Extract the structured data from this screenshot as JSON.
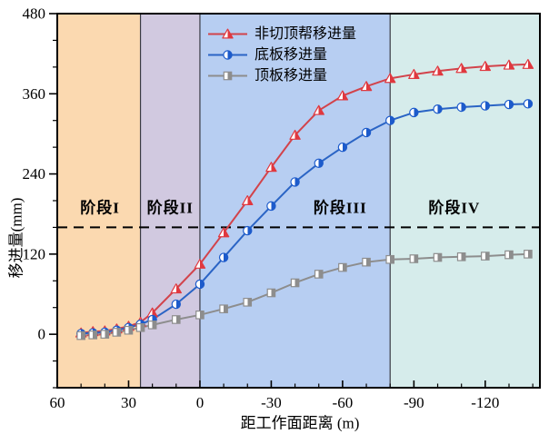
{
  "chart_data": {
    "type": "line",
    "title": "",
    "xlabel": "距工作面距离 (m)",
    "ylabel": "移进量(mm)",
    "xlim": [
      60,
      -143
    ],
    "ylim": [
      -80,
      480
    ],
    "x_axis_reversed": true,
    "x_ticks": [
      60,
      30,
      0,
      -30,
      -60,
      -90,
      -120
    ],
    "x_minor_step": 10,
    "y_ticks": [
      0,
      120,
      240,
      360,
      480
    ],
    "y_minor_step": 40,
    "grid": false,
    "x": [
      50,
      45,
      40,
      35,
      30,
      25,
      20,
      10,
      0,
      -10,
      -20,
      -30,
      -40,
      -50,
      -60,
      -70,
      -80,
      -90,
      -100,
      -110,
      -120,
      -130,
      -138
    ],
    "series": [
      {
        "name": "非切顶帮移进量",
        "marker": "triangle",
        "line_color": "#D2434B",
        "marker_color": "#E0383F",
        "values": [
          2,
          4,
          5,
          8,
          12,
          18,
          32,
          68,
          105,
          152,
          200,
          250,
          298,
          335,
          357,
          371,
          383,
          389,
          394,
          398,
          401,
          403,
          404
        ]
      },
      {
        "name": "底板移进量",
        "marker": "circle",
        "line_color": "#2A64C5",
        "marker_color": "#1D5BCB",
        "values": [
          1,
          2,
          3,
          6,
          10,
          15,
          22,
          45,
          75,
          115,
          155,
          192,
          228,
          256,
          280,
          302,
          320,
          332,
          337,
          340,
          342,
          344,
          345
        ]
      },
      {
        "name": "顶板移进量",
        "marker": "square",
        "line_color": "#8D8D8D",
        "marker_color": "#8D8D8D",
        "values": [
          -2,
          -1,
          0,
          3,
          6,
          10,
          14,
          22,
          29,
          38,
          48,
          62,
          77,
          90,
          100,
          108,
          112,
          113,
          115,
          116,
          117,
          119,
          120
        ]
      }
    ],
    "reference_line": {
      "y": 160,
      "style": "dashed",
      "color": "#000000"
    },
    "regions": [
      {
        "label": "阶段I",
        "from": 60,
        "to": 25,
        "color": "#FBD9B0",
        "label_x": 42
      },
      {
        "label": "阶段II",
        "from": 25,
        "to": 0,
        "color": "#D1C9E0",
        "label_x": 12.5
      },
      {
        "label": "阶段III",
        "from": 0,
        "to": -80,
        "color": "#B7CEF2",
        "label_x": -59
      },
      {
        "label": "阶段IV",
        "from": -80,
        "to": -143,
        "color": "#D6ECEB",
        "label_x": -107
      }
    ],
    "region_label_y": 192,
    "region_divider_color": "#3A3A44",
    "legend_position": "top-center"
  }
}
